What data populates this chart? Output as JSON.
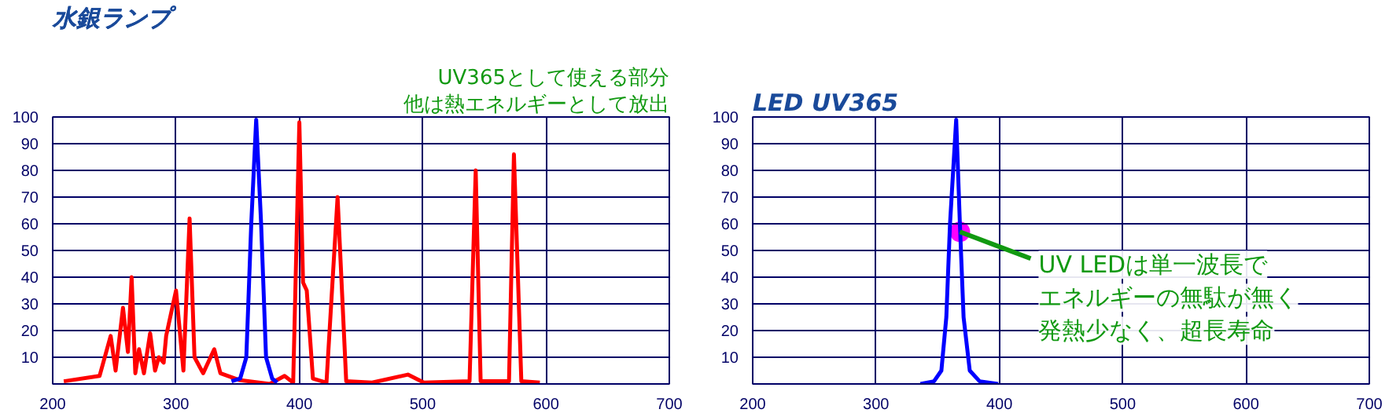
{
  "chart_data": [
    {
      "type": "line",
      "title": "水銀ランプ",
      "xlim": [
        200,
        700
      ],
      "ylim": [
        0,
        100
      ],
      "xticks": [
        200,
        300,
        400,
        500,
        600,
        700
      ],
      "yticks": [
        10,
        20,
        30,
        40,
        50,
        60,
        70,
        80,
        90,
        100
      ],
      "grid": true,
      "series": [
        {
          "color": "#ff0000",
          "x": [
            209,
            238,
            247,
            251,
            257,
            261,
            264,
            267,
            270,
            274,
            279,
            283,
            286,
            290,
            292,
            300,
            306,
            311,
            315,
            322,
            331,
            336,
            351,
            376,
            388,
            395,
            400,
            403,
            406,
            411,
            422,
            431,
            438,
            459,
            488,
            501,
            538,
            543,
            547,
            570,
            574,
            580,
            595
          ],
          "values": [
            1,
            3,
            18,
            5,
            28.5,
            12,
            40,
            4,
            13,
            4,
            19,
            5,
            10,
            8,
            18,
            35,
            5,
            62,
            10,
            4,
            13,
            4,
            1.5,
            0,
            3,
            0.5,
            98,
            38,
            35,
            2,
            0.5,
            70,
            1,
            0.5,
            3.5,
            0.5,
            1,
            80,
            1,
            1,
            86,
            1,
            0.5
          ]
        },
        {
          "color": "#0000ff",
          "x": [
            345,
            352,
            357,
            361,
            365,
            369,
            373,
            378,
            382
          ],
          "values": [
            1,
            2,
            10,
            60,
            99,
            60,
            10,
            2,
            0.5
          ]
        }
      ],
      "annotations": [
        "UV365として使える部分",
        "他は熱エネルギーとして放出"
      ]
    },
    {
      "type": "line",
      "title": "LED UV365",
      "xlim": [
        200,
        700
      ],
      "ylim": [
        0,
        100
      ],
      "xticks": [
        200,
        300,
        400,
        500,
        600,
        700
      ],
      "yticks": [
        10,
        20,
        30,
        40,
        50,
        60,
        70,
        80,
        90,
        100
      ],
      "grid": true,
      "series": [
        {
          "color": "#0000ff",
          "x": [
            336,
            347,
            353,
            357,
            360,
            365,
            368,
            371,
            376,
            384,
            399
          ],
          "values": [
            0,
            1,
            5,
            25,
            60,
            99,
            60,
            25,
            5,
            1,
            0
          ]
        }
      ],
      "annotations": [
        {
          "text": "UV LEDは単一波長で",
          "x": 368,
          "y": 57
        },
        "エネルギーの無駄が無く",
        "発熱少なく、超長寿命"
      ]
    }
  ]
}
